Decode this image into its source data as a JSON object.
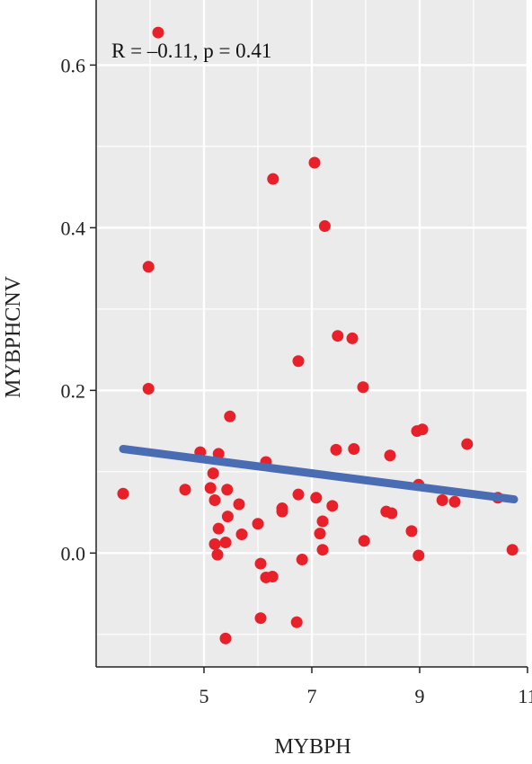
{
  "chart_data": {
    "type": "scatter",
    "title": "",
    "xlabel": "MYBPH",
    "ylabel": "MYBPHCNV",
    "annotation": "R = –0.11, p = 0.41",
    "xlim": [
      3.0,
      11.0
    ],
    "ylim": [
      -0.14,
      0.68
    ],
    "x_ticks": [
      5,
      7,
      9,
      11
    ],
    "y_ticks": [
      0.0,
      0.2,
      0.4,
      0.6
    ],
    "x_tick_labels": [
      "5",
      "7",
      "9",
      "11"
    ],
    "y_tick_labels": [
      "0.0",
      "0.2",
      "0.4",
      "0.6"
    ],
    "grid": true,
    "colors": {
      "panel": "#ebebeb",
      "grid": "#ffffff",
      "points": "#e8202a",
      "fit_line": "#4a6cb3"
    },
    "fit_line": {
      "x": [
        3.5,
        10.75
      ],
      "y": [
        0.128,
        0.066
      ]
    },
    "points": [
      {
        "x": 4.15,
        "y": 0.64
      },
      {
        "x": 3.97,
        "y": 0.352
      },
      {
        "x": 3.97,
        "y": 0.202
      },
      {
        "x": 3.5,
        "y": 0.073
      },
      {
        "x": 4.65,
        "y": 0.078
      },
      {
        "x": 4.93,
        "y": 0.124
      },
      {
        "x": 5.12,
        "y": 0.08
      },
      {
        "x": 5.17,
        "y": 0.098
      },
      {
        "x": 5.2,
        "y": 0.065
      },
      {
        "x": 5.27,
        "y": 0.122
      },
      {
        "x": 5.27,
        "y": 0.03
      },
      {
        "x": 5.2,
        "y": 0.011
      },
      {
        "x": 5.25,
        "y": -0.002
      },
      {
        "x": 5.4,
        "y": 0.013
      },
      {
        "x": 5.44,
        "y": 0.045
      },
      {
        "x": 5.43,
        "y": 0.078
      },
      {
        "x": 5.48,
        "y": 0.168
      },
      {
        "x": 5.65,
        "y": 0.06
      },
      {
        "x": 5.7,
        "y": 0.023
      },
      {
        "x": 5.4,
        "y": -0.105
      },
      {
        "x": 6.0,
        "y": 0.036
      },
      {
        "x": 6.05,
        "y": -0.013
      },
      {
        "x": 6.05,
        "y": -0.08
      },
      {
        "x": 6.15,
        "y": -0.03
      },
      {
        "x": 6.27,
        "y": -0.029
      },
      {
        "x": 6.15,
        "y": 0.112
      },
      {
        "x": 6.28,
        "y": 0.46
      },
      {
        "x": 6.45,
        "y": 0.055
      },
      {
        "x": 6.45,
        "y": 0.051
      },
      {
        "x": 6.72,
        "y": -0.085
      },
      {
        "x": 6.75,
        "y": 0.236
      },
      {
        "x": 6.75,
        "y": 0.072
      },
      {
        "x": 6.82,
        "y": -0.008
      },
      {
        "x": 7.05,
        "y": 0.48
      },
      {
        "x": 7.08,
        "y": 0.068
      },
      {
        "x": 7.15,
        "y": 0.024
      },
      {
        "x": 7.2,
        "y": 0.039
      },
      {
        "x": 7.2,
        "y": 0.004
      },
      {
        "x": 7.24,
        "y": 0.402
      },
      {
        "x": 7.38,
        "y": 0.058
      },
      {
        "x": 7.45,
        "y": 0.127
      },
      {
        "x": 7.48,
        "y": 0.267
      },
      {
        "x": 7.75,
        "y": 0.264
      },
      {
        "x": 7.78,
        "y": 0.128
      },
      {
        "x": 7.95,
        "y": 0.204
      },
      {
        "x": 7.97,
        "y": 0.015
      },
      {
        "x": 8.38,
        "y": 0.051
      },
      {
        "x": 8.45,
        "y": 0.12
      },
      {
        "x": 8.48,
        "y": 0.049
      },
      {
        "x": 8.85,
        "y": 0.027
      },
      {
        "x": 8.95,
        "y": 0.15
      },
      {
        "x": 9.05,
        "y": 0.152
      },
      {
        "x": 8.98,
        "y": 0.084
      },
      {
        "x": 8.98,
        "y": -0.003
      },
      {
        "x": 9.42,
        "y": 0.065
      },
      {
        "x": 9.65,
        "y": 0.063
      },
      {
        "x": 9.88,
        "y": 0.134
      },
      {
        "x": 10.45,
        "y": 0.068
      },
      {
        "x": 10.72,
        "y": 0.004
      }
    ]
  }
}
